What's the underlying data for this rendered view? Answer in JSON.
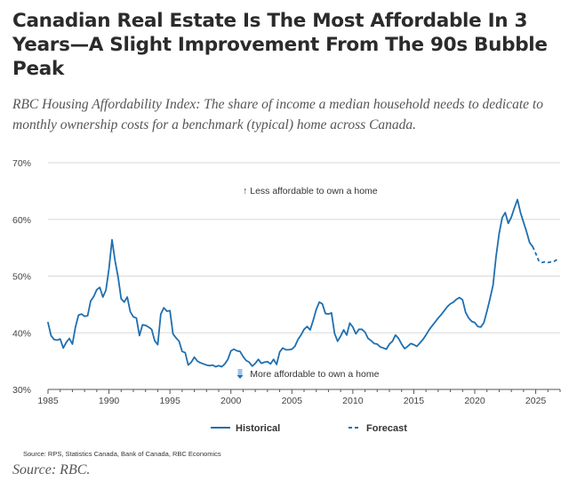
{
  "title": "Canadian Real Estate Is The Most Affordable In 3 Years—A Slight Improvement From The 90s Bubble Peak",
  "subtitle": "RBC Housing Affordability Index: The share of income a median household needs to dedicate to monthly ownership costs for a benchmark (typical) home across Canada.",
  "source_note": "Source: RPS, Statistics Canada, Bank of Canada, RBC Economics",
  "footer_source": "Source: RBC.",
  "colors": {
    "line": "#1f6fb0",
    "grid": "#d9d9d9",
    "axis": "#555555"
  },
  "chart_data": {
    "type": "line",
    "title": "",
    "xlabel": "",
    "ylabel": "",
    "xlim": [
      1985,
      2027
    ],
    "ylim": [
      30,
      70
    ],
    "x_ticks": [
      1985,
      1990,
      1995,
      2000,
      2005,
      2010,
      2015,
      2020,
      2025
    ],
    "x_tick_labels": [
      "1985",
      "1990",
      "1995",
      "2000",
      "2005",
      "2010",
      "2015",
      "2020",
      "2025"
    ],
    "y_ticks": [
      30,
      40,
      50,
      60,
      70
    ],
    "y_tick_labels": [
      "30%",
      "40%",
      "50%",
      "60%",
      "70%"
    ],
    "grid": true,
    "legend_position": "bottom-center",
    "annotations": [
      {
        "text": "↑ Less affordable to own a home",
        "x": 2006.5,
        "y": 64.5
      },
      {
        "text": "More affordable to own a home",
        "x": 2006.5,
        "y": 32.2
      }
    ],
    "series": [
      {
        "name": "Historical",
        "style": "solid",
        "x": [
          1985.0,
          1985.25,
          1985.5,
          1985.75,
          1986.0,
          1986.25,
          1986.5,
          1986.75,
          1987.0,
          1987.25,
          1987.5,
          1987.75,
          1988.0,
          1988.25,
          1988.5,
          1988.75,
          1989.0,
          1989.25,
          1989.5,
          1989.75,
          1990.0,
          1990.25,
          1990.5,
          1990.75,
          1991.0,
          1991.25,
          1991.5,
          1991.75,
          1992.0,
          1992.25,
          1992.5,
          1992.75,
          1993.0,
          1993.25,
          1993.5,
          1993.75,
          1994.0,
          1994.25,
          1994.5,
          1994.75,
          1995.0,
          1995.25,
          1995.5,
          1995.75,
          1996.0,
          1996.25,
          1996.5,
          1996.75,
          1997.0,
          1997.25,
          1997.5,
          1997.75,
          1998.0,
          1998.25,
          1998.5,
          1998.75,
          1999.0,
          1999.25,
          1999.5,
          1999.75,
          2000.0,
          2000.25,
          2000.5,
          2000.75,
          2001.0,
          2001.25,
          2001.5,
          2001.75,
          2002.0,
          2002.25,
          2002.5,
          2002.75,
          2003.0,
          2003.25,
          2003.5,
          2003.75,
          2004.0,
          2004.25,
          2004.5,
          2004.75,
          2005.0,
          2005.25,
          2005.5,
          2005.75,
          2006.0,
          2006.25,
          2006.5,
          2006.75,
          2007.0,
          2007.25,
          2007.5,
          2007.75,
          2008.0,
          2008.25,
          2008.5,
          2008.75,
          2009.0,
          2009.25,
          2009.5,
          2009.75,
          2010.0,
          2010.25,
          2010.5,
          2010.75,
          2011.0,
          2011.25,
          2011.5,
          2011.75,
          2012.0,
          2012.25,
          2012.5,
          2012.75,
          2013.0,
          2013.25,
          2013.5,
          2013.75,
          2014.0,
          2014.25,
          2014.5,
          2014.75,
          2015.0,
          2015.25,
          2015.5,
          2015.75,
          2016.0,
          2016.25,
          2016.5,
          2016.75,
          2017.0,
          2017.25,
          2017.5,
          2017.75,
          2018.0,
          2018.25,
          2018.5,
          2018.75,
          2019.0,
          2019.25,
          2019.5,
          2019.75,
          2020.0,
          2020.25,
          2020.5,
          2020.75,
          2021.0,
          2021.25,
          2021.5,
          2021.75,
          2022.0,
          2022.25,
          2022.5,
          2022.75,
          2023.0,
          2023.25,
          2023.5,
          2023.75,
          2024.0,
          2024.25,
          2024.5,
          2024.75
        ],
        "values": [
          41.8,
          39.5,
          38.8,
          38.7,
          38.9,
          37.3,
          38.3,
          39.0,
          38.0,
          41.0,
          43.1,
          43.3,
          42.9,
          43.0,
          45.6,
          46.4,
          47.6,
          48.0,
          46.3,
          47.5,
          51.3,
          56.4,
          52.7,
          49.8,
          46.0,
          45.4,
          46.3,
          43.7,
          42.8,
          42.6,
          39.5,
          41.4,
          41.3,
          41.0,
          40.6,
          38.6,
          37.9,
          43.3,
          44.4,
          43.8,
          43.9,
          39.8,
          39.1,
          38.5,
          36.7,
          36.5,
          34.3,
          34.8,
          35.7,
          35.0,
          34.7,
          34.5,
          34.3,
          34.2,
          34.3,
          34.0,
          34.2,
          34.0,
          34.5,
          35.3,
          36.8,
          37.1,
          36.8,
          36.7,
          35.8,
          35.1,
          34.8,
          34.1,
          34.6,
          35.3,
          34.6,
          34.8,
          34.9,
          34.5,
          35.3,
          34.4,
          36.6,
          37.3,
          37.0,
          37.0,
          37.1,
          37.6,
          38.8,
          39.6,
          40.6,
          41.1,
          40.5,
          42.2,
          44.1,
          45.4,
          45.1,
          43.4,
          43.3,
          43.5,
          39.9,
          38.5,
          39.4,
          40.5,
          39.6,
          41.7,
          41.0,
          39.8,
          40.6,
          40.6,
          40.1,
          39.0,
          38.6,
          38.1,
          38.0,
          37.5,
          37.3,
          37.1,
          38.0,
          38.5,
          39.6,
          39.0,
          38.0,
          37.2,
          37.6,
          38.1,
          37.9,
          37.6,
          38.2,
          38.8,
          39.6,
          40.5,
          41.2,
          41.9,
          42.6,
          43.2,
          43.9,
          44.6,
          45.1,
          45.4,
          45.9,
          46.2,
          45.8,
          43.6,
          42.6,
          42.0,
          41.8,
          41.1,
          41.0,
          41.8,
          43.8,
          46.0,
          48.4,
          53.5,
          57.5,
          60.3,
          61.2,
          59.3,
          60.4,
          62.0,
          63.5,
          61.2,
          59.5,
          57.8,
          55.9,
          55.2
        ]
      },
      {
        "name": "Forecast",
        "style": "dashed",
        "x": [
          2024.75,
          2025.0,
          2025.25,
          2025.5,
          2025.75,
          2026.0,
          2026.25,
          2026.5,
          2026.75
        ],
        "values": [
          55.2,
          54.0,
          52.7,
          52.4,
          52.5,
          52.4,
          52.5,
          52.6,
          52.9
        ]
      }
    ]
  }
}
